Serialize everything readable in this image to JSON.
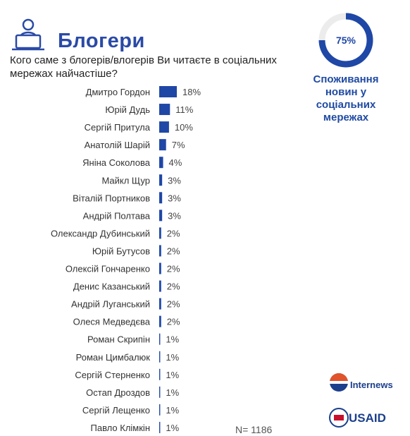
{
  "chart_data": [
    {
      "type": "bar",
      "orientation": "horizontal",
      "title": "Блогери",
      "subtitle": "Кого саме з блогерів/влогерів Ви читаєте в соціальних мережах найчастіше?",
      "categories": [
        "Дмитро Гордон",
        "Юрій Дудь",
        "Сергій Притула",
        "Анатолій Шарій",
        "Яніна Соколова",
        "Майкл Щур",
        "Віталій Портников",
        "Андрій Полтава",
        "Олександр Дубинський",
        "Юрій Бутусов",
        "Олексій Гончаренко",
        "Денис Казанський",
        "Андрій Луганський",
        "Олеся Медведєва",
        "Роман Скрипін",
        "Роман Цимбалюк",
        "Сергій Стерненко",
        "Остап Дроздов",
        "Сергій Лещенко",
        "Павло Клімкін"
      ],
      "values": [
        18,
        11,
        10,
        7,
        4,
        3,
        3,
        3,
        2,
        2,
        2,
        2,
        2,
        2,
        1,
        1,
        1,
        1,
        1,
        1
      ],
      "value_labels": [
        "18%",
        "11%",
        "10%",
        "7%",
        "4%",
        "3%",
        "3%",
        "3%",
        "2%",
        "2%",
        "2%",
        "2%",
        "2%",
        "2%",
        "1%",
        "1%",
        "1%",
        "1%",
        "1%",
        "1%"
      ],
      "color": "#1f47a6",
      "note": "N= 1186"
    },
    {
      "type": "donut",
      "title": "Споживання новин у соціальних мережах",
      "values": [
        75
      ],
      "value_labels": [
        "75%"
      ],
      "color": "#1f47a6",
      "track_color": "#ececec"
    }
  ],
  "logos": [
    "Internews",
    "USAID"
  ]
}
